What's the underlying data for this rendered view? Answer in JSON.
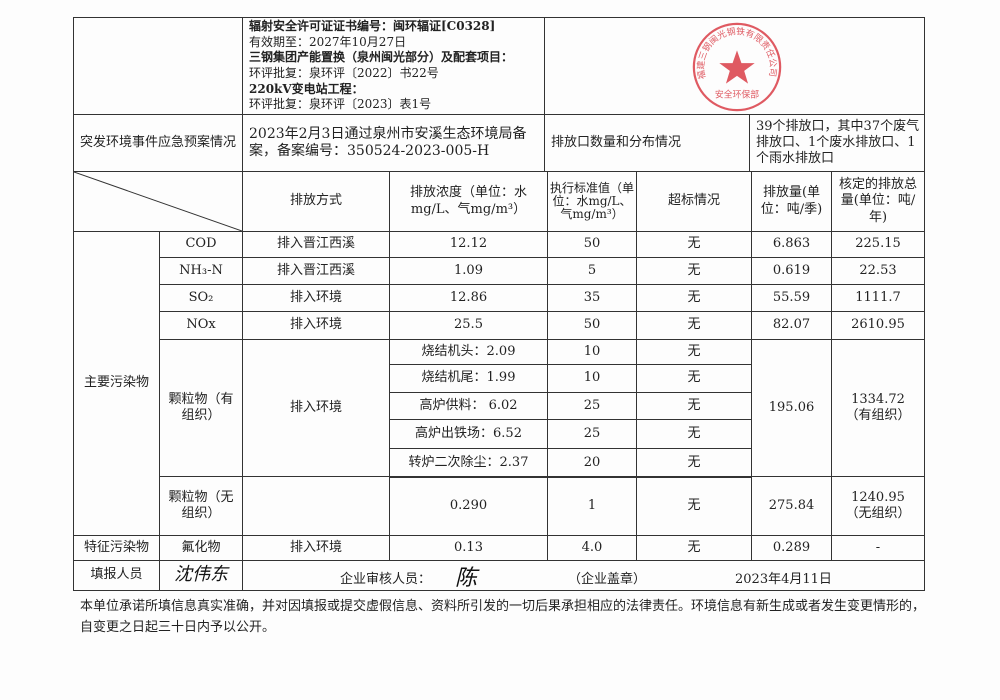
{
  "license": {
    "line1": "辐射安全许可证证书编号：闽环辐证[C0328]",
    "line2": "有效期至：2027年10月27日",
    "line3": "三钢集团产能置换（泉州闽光部分）及配套项目：",
    "line4": "环评批复：泉环评〔2022〕书22号",
    "line5": "220kV变电站工程：",
    "line6": "环评批复：泉环评〔2023〕表1号"
  },
  "emergency": {
    "label": "突发环境事件应急预案情况",
    "value": "2023年2月3日通过泉州市安溪生态环境局备案，备案编号：350524-2023-005-H"
  },
  "outlets": {
    "label": "排放口数量和分布情况",
    "value": "39个排放口，其中37个废气排放口、1个废水排放口、1个雨水排放口"
  },
  "headers": {
    "method": "排放方式",
    "concentration": "排放浓度（单位：水mg/L、气mg/m³）",
    "standard": "执行标准值（单位：水mg/L、气mg/m³）",
    "exceed": "超标情况",
    "amount": "排放量(单位：吨/季)",
    "approved": "核定的排放总量(单位：吨/年)"
  },
  "main_label": "主要污染物",
  "rows": [
    {
      "name": "COD",
      "method": "排入晋江西溪",
      "conc": "12.12",
      "std": "50",
      "exceed": "无",
      "amount": "6.863",
      "approved": "225.15"
    },
    {
      "name": "NH₃-N",
      "method": "排入晋江西溪",
      "conc": "1.09",
      "std": "5",
      "exceed": "无",
      "amount": "0.619",
      "approved": "22.53"
    },
    {
      "name": "SO₂",
      "method": "排入环境",
      "conc": "12.86",
      "std": "35",
      "exceed": "无",
      "amount": "55.59",
      "approved": "1111.7"
    },
    {
      "name": "NOx",
      "method": "排入环境",
      "conc": "25.5",
      "std": "50",
      "exceed": "无",
      "amount": "82.07",
      "approved": "2610.95"
    }
  ],
  "particulate_org": {
    "name": "颗粒物（有组织）",
    "method": "排入环境",
    "sub": [
      {
        "conc": "烧结机头：2.09",
        "std": "10",
        "exceed": "无"
      },
      {
        "conc": "烧结机尾：1.99",
        "std": "10",
        "exceed": "无"
      },
      {
        "conc": "高炉供料： 6.02",
        "std": "25",
        "exceed": "无"
      },
      {
        "conc": "高炉出铁场：6.52",
        "std": "25",
        "exceed": "无"
      },
      {
        "conc": "转炉二次除尘：2.37",
        "std": "20",
        "exceed": "无"
      }
    ],
    "amount": "195.06",
    "approved": "1334.72（有组织）"
  },
  "particulate_unorg": {
    "name": "颗粒物（无组织）",
    "conc": "0.290",
    "std": "1",
    "exceed": "无",
    "amount": "275.84",
    "approved": "1240.95（无组织）"
  },
  "feature": {
    "label": "特征污染物",
    "name": "氟化物",
    "method": "排入环境",
    "conc": "0.13",
    "std": "4.0",
    "exceed": "无",
    "amount": "0.289",
    "approved": "-"
  },
  "sign": {
    "filler_label": "填报人员",
    "filler_sig": "沈伟东",
    "reviewer_label": "企业审核人员：",
    "reviewer_sig": "陈",
    "seal_label": "（企业盖章）",
    "date": "2023年4月11日"
  },
  "footer": "本单位承诺所填信息真实准确，并对因填报或提交虚假信息、资料所引发的一切后果承担相应的法律责任。环境信息有新生成或者发生变更情形的，自变更之日起三十日内予以公开。",
  "stamp": {
    "ring_text": "福建三钢闽光钢铁有限责任公司",
    "dept": "安全环保部",
    "color": "#d8323c"
  }
}
